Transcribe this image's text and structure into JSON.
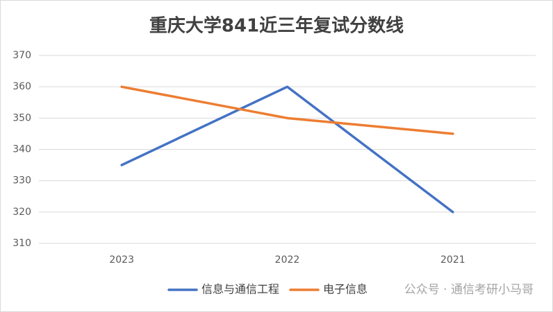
{
  "chart_data": {
    "type": "line",
    "title": "重庆大学841近三年复试分数线",
    "categories": [
      "2023",
      "2022",
      "2021"
    ],
    "series": [
      {
        "name": "信息与通信工程",
        "color": "#4472c4",
        "values": [
          335,
          360,
          320
        ]
      },
      {
        "name": "电子信息",
        "color": "#ed7d31",
        "values": [
          360,
          350,
          345
        ]
      }
    ],
    "ylim": [
      310,
      370
    ],
    "yticks": [
      310,
      320,
      330,
      340,
      350,
      360,
      370
    ],
    "grid": true,
    "legend": "bottom",
    "watermark": "公众号 · 通信考研小马哥"
  }
}
